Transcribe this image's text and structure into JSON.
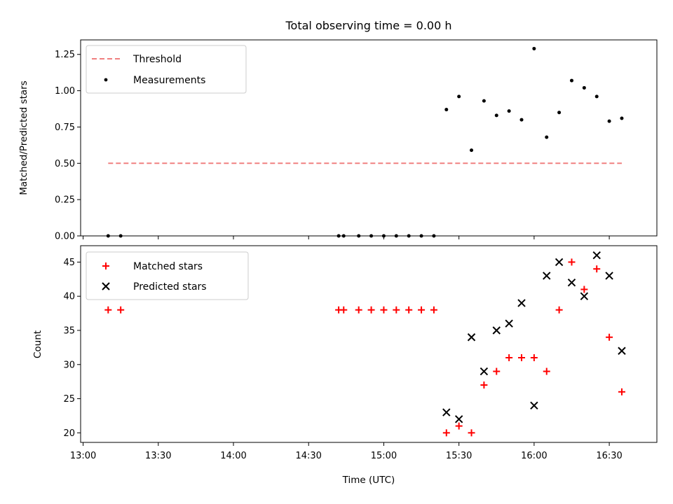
{
  "chart_data": [
    {
      "type": "scatter",
      "title": "Total observing time = 0.00 h",
      "ylabel": "Matched/Predicted stars",
      "ylim": [
        0,
        1.35
      ],
      "y_ticks": [
        "0.00",
        "0.25",
        "0.50",
        "0.75",
        "1.00",
        "1.25"
      ],
      "legend": {
        "position": "top-left",
        "entries": [
          "Threshold",
          "Measurements"
        ]
      },
      "threshold": {
        "name": "Threshold",
        "color": "#f08080",
        "y": 0.5,
        "x_range": [
          "13:10",
          "16:35"
        ]
      },
      "series": [
        {
          "name": "Measurements",
          "color": "#000000",
          "x": [
            "13:10",
            "13:15",
            "14:42",
            "14:44",
            "14:50",
            "14:55",
            "15:00",
            "15:05",
            "15:10",
            "15:15",
            "15:20",
            "15:25",
            "15:30",
            "15:35",
            "15:40",
            "15:45",
            "15:50",
            "15:55",
            "16:00",
            "16:05",
            "16:10",
            "16:15",
            "16:20",
            "16:25",
            "16:30",
            "16:35"
          ],
          "y": [
            0,
            0,
            0,
            0,
            0,
            0,
            0,
            0,
            0,
            0,
            0,
            0.87,
            0.96,
            0.59,
            0.93,
            0.83,
            0.86,
            0.8,
            1.29,
            0.68,
            0.85,
            1.07,
            1.02,
            0.96,
            0.79,
            0.81
          ]
        }
      ]
    },
    {
      "type": "scatter",
      "xlabel": "Time (UTC)",
      "ylabel": "Count",
      "ylim": [
        18.6,
        47.4
      ],
      "y_ticks": [
        "20",
        "25",
        "30",
        "35",
        "40",
        "45"
      ],
      "x_ticks": [
        "13:00",
        "13:30",
        "14:00",
        "14:30",
        "15:00",
        "15:30",
        "16:00",
        "16:30"
      ],
      "xlim": [
        "12:59",
        "16:49"
      ],
      "legend": {
        "position": "top-left",
        "entries": [
          "Matched stars",
          "Predicted stars"
        ]
      },
      "series": [
        {
          "name": "Matched stars",
          "marker": "plus",
          "color": "#ff0000",
          "x": [
            "13:10",
            "13:15",
            "14:42",
            "14:44",
            "14:50",
            "14:55",
            "15:00",
            "15:05",
            "15:10",
            "15:15",
            "15:20",
            "15:25",
            "15:30",
            "15:35",
            "15:40",
            "15:45",
            "15:50",
            "15:55",
            "16:00",
            "16:05",
            "16:10",
            "16:15",
            "16:20",
            "16:25",
            "16:30",
            "16:35"
          ],
          "y": [
            38,
            38,
            38,
            38,
            38,
            38,
            38,
            38,
            38,
            38,
            38,
            20,
            21,
            20,
            27,
            29,
            31,
            31,
            31,
            29,
            38,
            45,
            41,
            44,
            34,
            26
          ]
        },
        {
          "name": "Predicted stars",
          "marker": "x",
          "color": "#000000",
          "x": [
            "15:25",
            "15:30",
            "15:35",
            "15:40",
            "15:45",
            "15:50",
            "15:55",
            "16:00",
            "16:05",
            "16:10",
            "16:15",
            "16:20",
            "16:25",
            "16:30",
            "16:35"
          ],
          "y": [
            23,
            22,
            34,
            29,
            35,
            36,
            39,
            24,
            43,
            45,
            42,
            40,
            46,
            43,
            32
          ]
        }
      ]
    }
  ]
}
